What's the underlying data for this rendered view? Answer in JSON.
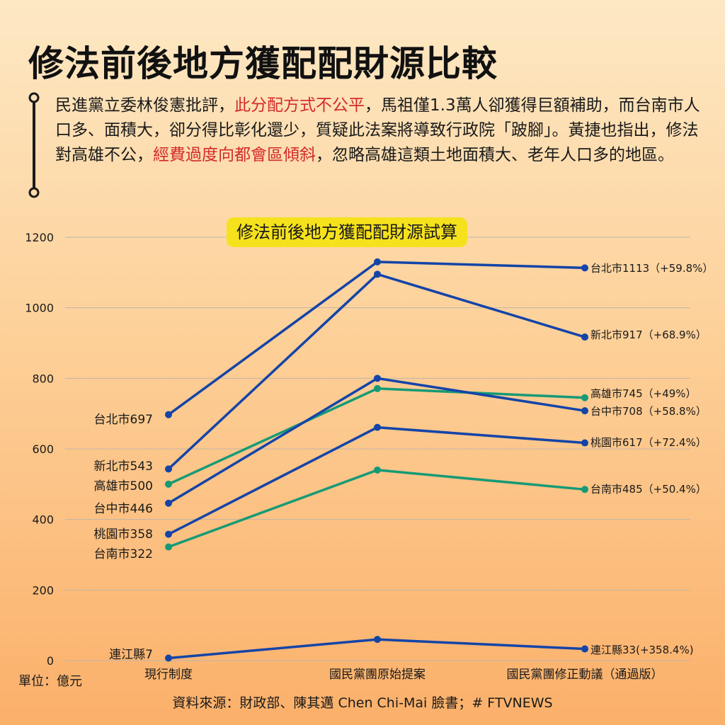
{
  "header": {
    "title": "修法前後地方獲配配財源比較"
  },
  "intro": {
    "seg1": "民進黨立委林俊憲批評，",
    "seg2": "此分配方式不公平",
    "seg3": "，馬祖僅1.3萬人卻獲得巨額補助，而台南市人口多、面積大，卻分得比彰化還少，質疑此法案將導致行政院「跛腳」。黃捷也指出，修法對高雄不公，",
    "seg4": "經費過度向都會區傾斜",
    "seg5": "，忽略高雄這類土地面積大、老年人口多的地區。"
  },
  "colors": {
    "blue": "#1444a8",
    "green": "#169a76",
    "highlight_red": "#d42a2a",
    "title_box": "#f6e21c"
  },
  "footer": {
    "unit": "單位：億元",
    "source": "資料來源：財政部、陳其邁 Chen Chi-Mai 臉書；# FTVNEWS"
  },
  "chart_data": {
    "type": "line",
    "title": "修法前後地方獲配配財源試算",
    "categories": [
      "現行制度",
      "國民黨團原始提案",
      "國民黨團修正動議（通過版）"
    ],
    "ylim": [
      0,
      1200
    ],
    "yticks": [
      "0",
      "200",
      "400",
      "600",
      "800",
      "1000",
      "1200"
    ],
    "grid": true,
    "series": [
      {
        "name": "台北市",
        "values": [
          697,
          1130,
          1113
        ],
        "color": "blue",
        "start_label": "台北市697",
        "end_label": "台北市1113（+59.8%）"
      },
      {
        "name": "新北市",
        "values": [
          543,
          1095,
          917
        ],
        "color": "blue",
        "start_label": "新北市543",
        "end_label": "新北市917（+68.9%）"
      },
      {
        "name": "高雄市",
        "values": [
          500,
          771,
          745
        ],
        "color": "green",
        "start_label": "高雄市500",
        "end_label": "高雄市745（+49%）"
      },
      {
        "name": "台中市",
        "values": [
          446,
          800,
          708
        ],
        "color": "blue",
        "start_label": "台中市446",
        "end_label": "台中市708（+58.8%）"
      },
      {
        "name": "桃園市",
        "values": [
          358,
          661,
          617
        ],
        "color": "blue",
        "start_label": "桃園市358",
        "end_label": "桃園市617（+72.4%）"
      },
      {
        "name": "台南市",
        "values": [
          322,
          540,
          485
        ],
        "color": "green",
        "start_label": "台南市322",
        "end_label": "台南市485（+50.4%）"
      },
      {
        "name": "連江縣",
        "values": [
          7,
          60,
          33
        ],
        "color": "blue",
        "start_label": "連江縣7",
        "end_label": "連江縣33(+358.4%)"
      }
    ]
  }
}
